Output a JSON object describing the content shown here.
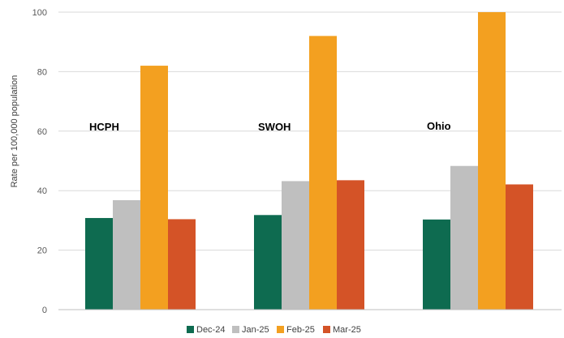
{
  "chart_data": {
    "type": "bar",
    "categories": [
      "HCPH",
      "SWOH",
      "Ohio"
    ],
    "series": [
      {
        "name": "Dec-24",
        "color": "#0e6b50",
        "values": [
          30.8,
          31.8,
          30.3
        ]
      },
      {
        "name": "Jan-25",
        "color": "#bfbfbf",
        "values": [
          36.8,
          43.2,
          48.3
        ]
      },
      {
        "name": "Feb-25",
        "color": "#f3a020",
        "values": [
          82.0,
          92.0,
          100.0
        ]
      },
      {
        "name": "Mar-25",
        "color": "#d45327",
        "values": [
          30.4,
          43.5,
          42.1
        ]
      }
    ],
    "xlabel": "",
    "ylabel": "Rate per 100,000 population",
    "ylim": [
      0,
      100
    ],
    "yticks": [
      0,
      20,
      40,
      60,
      80,
      100
    ],
    "grid": true,
    "legend": "bottom"
  }
}
